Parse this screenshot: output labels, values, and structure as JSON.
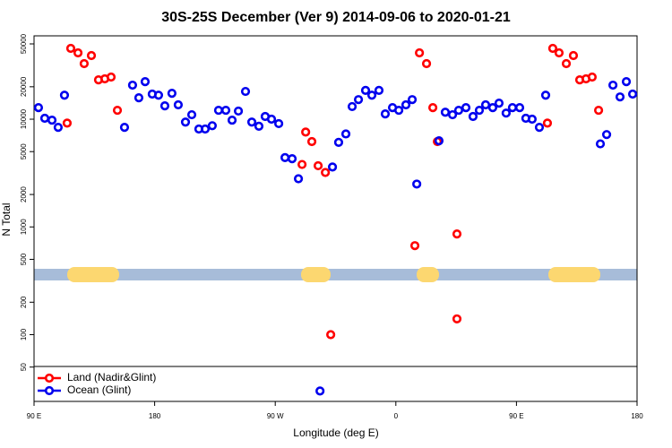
{
  "chart_data": {
    "type": "scatter",
    "title": "30S-25S December (Ver 9)   2014-09-06 to 2020-01-21",
    "x_label": "Longitude (deg E)",
    "y_label": "N Total",
    "xlim": [
      90,
      540
    ],
    "xticks": [
      {
        "value": 90,
        "label": "90 E"
      },
      180,
      {
        "value": 270,
        "label": "90 W"
      },
      {
        "value": 360,
        "label": "0"
      },
      {
        "value": 450,
        "label": "90 E"
      },
      {
        "value": 540,
        "label": "180"
      }
    ],
    "ylim": [
      24,
      59400
    ],
    "y_log": true,
    "yticks": [
      50,
      100,
      200,
      500,
      1000,
      2000,
      5000,
      10000,
      20000,
      50000
    ],
    "legend": "bottom left",
    "series": [
      {
        "name": "Land (Nadir&Glint)",
        "color": "#ff0000",
        "x": [
          114.7,
          117.4,
          122.8,
          127.4,
          132.8,
          138.1,
          142.8,
          147.5,
          152.2,
          290,
          292.7,
          297.3,
          302,
          307.4,
          311.4,
          374.2,
          377.6,
          382.9,
          387.6,
          391,
          405.6,
          405.6,
          473.1,
          477.1,
          481.8,
          487.2,
          492.5,
          497.2,
          501.9,
          506.5,
          511.3
        ],
        "values": [
          9200,
          45400,
          41300,
          32800,
          39000,
          23200,
          23700,
          24600,
          12100,
          3800,
          7600,
          6200,
          3700,
          3200,
          100,
          670,
          41300,
          32800,
          12800,
          6200,
          860,
          140,
          9200,
          45400,
          41300,
          32800,
          39000,
          23200,
          23700,
          24600,
          12100
        ]
      },
      {
        "name": "Ocean (Glint)",
        "color": "#0000ee",
        "x": [
          93.3,
          98,
          103.4,
          108,
          112.7,
          157.5,
          163.5,
          168.2,
          172.9,
          178.2,
          182.9,
          187.6,
          192.9,
          197.6,
          203,
          207.7,
          213,
          217.7,
          223,
          227.7,
          233.1,
          237.8,
          242.5,
          247.8,
          252.5,
          257.8,
          262.5,
          267.2,
          272.6,
          277.3,
          282.6,
          287.3,
          303.4,
          312.7,
          317.3,
          322.7,
          327.4,
          332.1,
          337.4,
          342.1,
          347.4,
          352.1,
          357.5,
          362.2,
          367.5,
          372.2,
          375.6,
          392.2,
          396.9,
          402.3,
          406.9,
          412.3,
          417.6,
          422.3,
          427,
          432.3,
          437,
          442.3,
          447,
          452.4,
          457,
          461.7,
          467.1,
          471.8,
          512.6,
          517.3,
          522,
          527.3,
          532,
          536.7
        ],
        "values": [
          12800,
          10200,
          9800,
          8400,
          16700,
          8400,
          20700,
          15800,
          22300,
          17100,
          16700,
          13300,
          17400,
          13600,
          9400,
          11000,
          8100,
          8100,
          8700,
          12100,
          12100,
          9800,
          11900,
          18100,
          9400,
          8600,
          10600,
          10000,
          9100,
          4400,
          4300,
          2800,
          30,
          3600,
          6100,
          7300,
          13100,
          15200,
          18500,
          16700,
          18500,
          11200,
          12800,
          12100,
          13600,
          15200,
          2500,
          6300,
          11600,
          11000,
          12100,
          12800,
          10600,
          12100,
          13600,
          12800,
          14100,
          11400,
          12800,
          12800,
          10200,
          10000,
          8400,
          16700,
          5900,
          7200,
          20700,
          16100,
          22300,
          17100
        ]
      }
    ]
  }
}
